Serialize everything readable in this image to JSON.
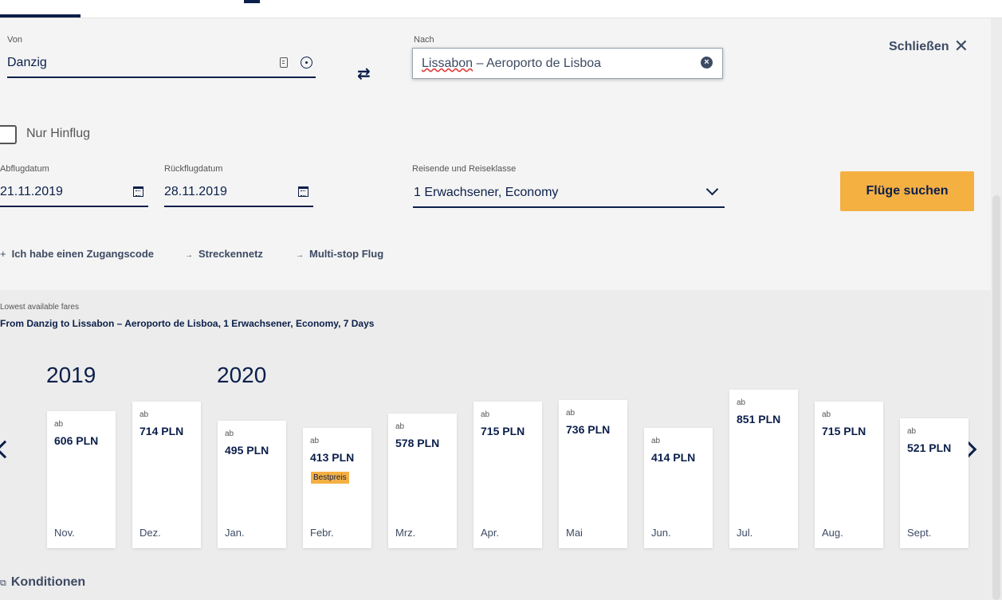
{
  "form": {
    "from_label": "Von",
    "from_value": "Danzig",
    "to_label": "Nach",
    "to_value_city": "Lissabon",
    "to_value_rest": " – Aeroporto de Lisboa",
    "close_label": "Schließen",
    "one_way_label": "Nur Hinflug",
    "departure_label": "Abflugdatum",
    "departure_value": "21.11.2019",
    "return_label": "Rückflugdatum",
    "return_value": "28.11.2019",
    "passengers_label": "Reisende und Reiseklasse",
    "passengers_value": "1 Erwachsener, Economy",
    "search_button": "Flüge suchen"
  },
  "links": [
    {
      "prefix": "+",
      "label": "Ich habe einen Zugangscode"
    },
    {
      "prefix": "→",
      "label": "Streckennetz"
    },
    {
      "prefix": "→",
      "label": "Multi-stop Flug"
    }
  ],
  "fares": {
    "title": "Lowest available fares",
    "subtitle": "From Danzig to Lissabon – Aeroporto de Lisboa, 1 Erwachsener, Economy, 7 Days",
    "years": [
      "2019",
      "2020"
    ],
    "ab_label": "ab",
    "best_label": "Bestpreis",
    "currency": "PLN",
    "cards": [
      {
        "month": "Nov.",
        "price": "606 PLN",
        "value": 606
      },
      {
        "month": "Dez.",
        "price": "714 PLN",
        "value": 714
      },
      {
        "month": "Jan.",
        "price": "495 PLN",
        "value": 495
      },
      {
        "month": "Febr.",
        "price": "413 PLN",
        "value": 413,
        "best": true
      },
      {
        "month": "Mrz.",
        "price": "578 PLN",
        "value": 578
      },
      {
        "month": "Apr.",
        "price": "715 PLN",
        "value": 715
      },
      {
        "month": "Mai",
        "price": "736 PLN",
        "value": 736
      },
      {
        "month": "Jun.",
        "price": "414 PLN",
        "value": 414
      },
      {
        "month": "Jul.",
        "price": "851 PLN",
        "value": 851
      },
      {
        "month": "Aug.",
        "price": "715 PLN",
        "value": 715
      },
      {
        "month": "Sept.",
        "price": "521 PLN",
        "value": 521
      }
    ]
  },
  "conditions_label": "Konditionen",
  "icons": {
    "from_info": "id-card-icon",
    "from_locate": "crosshair-icon",
    "swap": "swap-arrows-icon",
    "clear": "clear-circle-icon",
    "close": "close-icon",
    "calendar": "calendar-icon",
    "chevron": "chevron-down-icon"
  },
  "colors": {
    "navy": "#0b1f4b",
    "accent": "#f5b042"
  }
}
